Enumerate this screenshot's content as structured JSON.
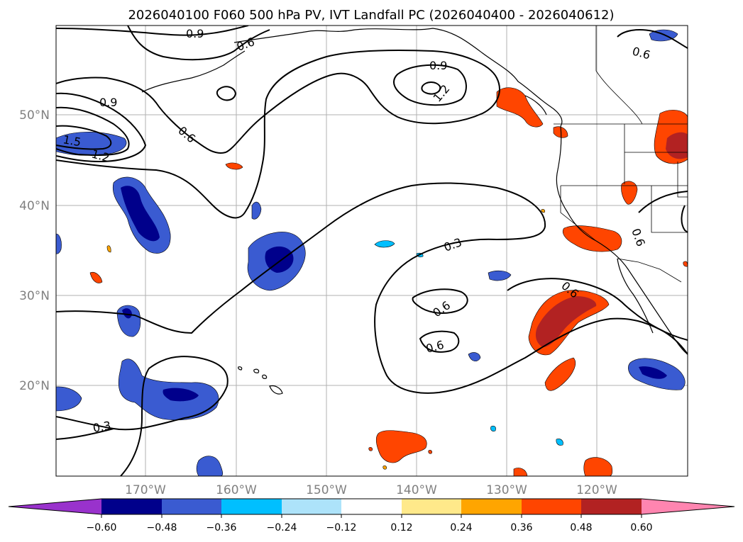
{
  "title": "2026040100 F060 500 hPa PV, IVT Landfall PC (2026040400 - 2026040612)",
  "map": {
    "lon_labels": [
      "170°W",
      "160°W",
      "150°W",
      "140°W",
      "130°W",
      "120°W"
    ],
    "lat_labels": [
      "50°N",
      "40°N",
      "30°N",
      "20°N"
    ],
    "contour_labels": [
      "0.9",
      "0.6",
      "0.9",
      "1.2",
      "0.6",
      "0.9",
      "1.5",
      "1.2",
      "0.6",
      "0.6",
      "0.3",
      "0.6",
      "0.6",
      "0.6",
      "0.3"
    ]
  },
  "colorbar": {
    "tick_labels": [
      "−0.60",
      "−0.48",
      "−0.36",
      "−0.24",
      "−0.12",
      "0.12",
      "0.24",
      "0.36",
      "0.48",
      "0.60"
    ],
    "colors": {
      "under": "#9932cc",
      "c1": "#00008b",
      "c2": "#3a5bd1",
      "c3": "#00bfff",
      "c4": "#ade3fa",
      "c5": "#ffffff",
      "c6": "#ffe98a",
      "c7": "#ffa500",
      "c8": "#ff4500",
      "c9": "#b22222",
      "over": "#ff85b0"
    }
  }
}
